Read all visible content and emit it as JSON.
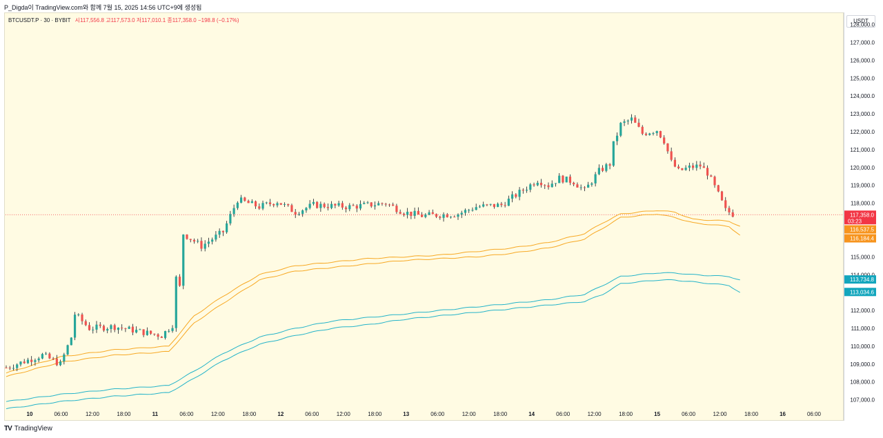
{
  "header": {
    "caption": "P_Digda이 TradingView.com와 함께 7월 15, 2025 14:56 UTC+9에 생성됨"
  },
  "legend": {
    "symbol": "BTCUSDT.P · 30 · BYBIT",
    "ohlc": "시117,556.8  고117,573.0  저117,010.1  종117,358.0  −198.8 (−0.17%)"
  },
  "price_axis": {
    "currency": "USDT"
  },
  "footer": {
    "logo": "TV",
    "brand": "TradingView"
  },
  "colors": {
    "background": "#fffbe3",
    "up": "#26a69a",
    "down": "#ef5350",
    "orange_band": "#f7a823",
    "cyan_band": "#22b3c9",
    "last_price": "#f23645",
    "orange_label": "#f7941d",
    "cyan_label": "#13a6bd"
  },
  "chart_data": {
    "type": "candlestick",
    "y_ticks": [
      "107,000.0",
      "108,000.0",
      "109,000.0",
      "110,000.0",
      "111,000.0",
      "112,000.0",
      "113,000.0",
      "114,000.0",
      "115,000.0",
      "116,000.0",
      "117,000.0",
      "118,000.0",
      "119,000.0",
      "120,000.0",
      "121,000.0",
      "122,000.0",
      "123,000.0",
      "124,000.0",
      "125,000.0",
      "126,000.0",
      "127,000.0",
      "128,000.0"
    ],
    "x_ticks": [
      "10",
      "06:00",
      "12:00",
      "18:00",
      "11",
      "06:00",
      "12:00",
      "18:00",
      "12",
      "06:00",
      "12:00",
      "18:00",
      "13",
      "06:00",
      "12:00",
      "18:00",
      "14",
      "06:00",
      "12:00",
      "18:00",
      "15",
      "06:00",
      "12:00",
      "18:00",
      "16",
      "06:00"
    ],
    "ylim": [
      106600,
      128600
    ],
    "price_path": [
      [
        0,
        108800
      ],
      [
        10,
        109500
      ],
      [
        15,
        109000
      ],
      [
        18,
        110500
      ],
      [
        19,
        111800
      ],
      [
        23,
        111000
      ],
      [
        30,
        111100
      ],
      [
        40,
        110700
      ],
      [
        43,
        110600
      ],
      [
        46,
        111200
      ],
      [
        47,
        113800
      ],
      [
        48,
        113300
      ],
      [
        49,
        116300
      ],
      [
        54,
        115600
      ],
      [
        60,
        116400
      ],
      [
        64,
        118200
      ],
      [
        70,
        117800
      ],
      [
        75,
        118100
      ],
      [
        80,
        117500
      ],
      [
        85,
        117900
      ],
      [
        95,
        117800
      ],
      [
        105,
        118000
      ],
      [
        110,
        117500
      ],
      [
        115,
        117300
      ],
      [
        125,
        117400
      ],
      [
        130,
        117800
      ],
      [
        137,
        117900
      ],
      [
        142,
        118600
      ],
      [
        147,
        119300
      ],
      [
        150,
        119000
      ],
      [
        153,
        119400
      ],
      [
        157,
        119200
      ],
      [
        160,
        118700
      ],
      [
        164,
        119800
      ],
      [
        167,
        120200
      ],
      [
        168,
        121300
      ],
      [
        170,
        122400
      ],
      [
        173,
        122700
      ],
      [
        176,
        121900
      ],
      [
        180,
        122100
      ],
      [
        182,
        121500
      ],
      [
        184,
        120300
      ],
      [
        186,
        119800
      ],
      [
        189,
        120000
      ],
      [
        192,
        120100
      ],
      [
        194,
        119700
      ],
      [
        197,
        118500
      ],
      [
        199,
        117600
      ],
      [
        201,
        117400
      ]
    ],
    "series": [
      {
        "name": "band-orange-upper",
        "color": "#f7a823",
        "values": [
          [
            0,
            108500
          ],
          [
            15,
            109400
          ],
          [
            30,
            109800
          ],
          [
            45,
            110000
          ],
          [
            52,
            111700
          ],
          [
            60,
            112800
          ],
          [
            70,
            114000
          ],
          [
            80,
            114500
          ],
          [
            90,
            114700
          ],
          [
            100,
            114900
          ],
          [
            110,
            115000
          ],
          [
            120,
            115100
          ],
          [
            130,
            115300
          ],
          [
            140,
            115500
          ],
          [
            150,
            115800
          ],
          [
            160,
            116300
          ],
          [
            165,
            116900
          ],
          [
            170,
            117400
          ],
          [
            180,
            117600
          ],
          [
            185,
            117500
          ],
          [
            190,
            117100
          ],
          [
            200,
            117000
          ],
          [
            203,
            116700
          ]
        ]
      },
      {
        "name": "band-orange-lower",
        "color": "#f7a823",
        "values": [
          [
            0,
            108300
          ],
          [
            15,
            109100
          ],
          [
            30,
            109500
          ],
          [
            45,
            109700
          ],
          [
            52,
            111300
          ],
          [
            60,
            112400
          ],
          [
            70,
            113700
          ],
          [
            80,
            114200
          ],
          [
            90,
            114400
          ],
          [
            100,
            114600
          ],
          [
            110,
            114800
          ],
          [
            120,
            114900
          ],
          [
            130,
            115000
          ],
          [
            140,
            115200
          ],
          [
            150,
            115500
          ],
          [
            160,
            116000
          ],
          [
            165,
            116600
          ],
          [
            170,
            117200
          ],
          [
            180,
            117400
          ],
          [
            185,
            117200
          ],
          [
            190,
            116900
          ],
          [
            200,
            116700
          ],
          [
            203,
            116200
          ]
        ]
      },
      {
        "name": "band-cyan-upper",
        "color": "#22b3c9",
        "values": [
          [
            0,
            106900
          ],
          [
            15,
            107300
          ],
          [
            30,
            107600
          ],
          [
            45,
            107800
          ],
          [
            52,
            108600
          ],
          [
            60,
            109600
          ],
          [
            70,
            110500
          ],
          [
            80,
            111000
          ],
          [
            90,
            111400
          ],
          [
            100,
            111600
          ],
          [
            110,
            111800
          ],
          [
            120,
            112000
          ],
          [
            130,
            112200
          ],
          [
            140,
            112400
          ],
          [
            150,
            112600
          ],
          [
            160,
            112900
          ],
          [
            165,
            113400
          ],
          [
            170,
            113900
          ],
          [
            180,
            114100
          ],
          [
            185,
            114100
          ],
          [
            190,
            114000
          ],
          [
            200,
            113900
          ],
          [
            203,
            113700
          ]
        ]
      },
      {
        "name": "band-cyan-lower",
        "color": "#22b3c9",
        "values": [
          [
            0,
            106500
          ],
          [
            15,
            106900
          ],
          [
            30,
            107200
          ],
          [
            45,
            107400
          ],
          [
            52,
            108200
          ],
          [
            60,
            109200
          ],
          [
            70,
            110100
          ],
          [
            80,
            110600
          ],
          [
            90,
            111000
          ],
          [
            100,
            111200
          ],
          [
            110,
            111500
          ],
          [
            120,
            111700
          ],
          [
            130,
            111900
          ],
          [
            140,
            112100
          ],
          [
            150,
            112300
          ],
          [
            160,
            112500
          ],
          [
            165,
            112900
          ],
          [
            170,
            113500
          ],
          [
            180,
            113700
          ],
          [
            185,
            113700
          ],
          [
            190,
            113600
          ],
          [
            200,
            113400
          ],
          [
            203,
            113000
          ]
        ]
      }
    ],
    "labels": [
      {
        "price": 117358.0,
        "text": "117,358.0",
        "sub": "03:23",
        "color": "#f23645"
      },
      {
        "price": 116537.5,
        "text": "116,537.5",
        "color": "#f7941d"
      },
      {
        "price": 116184.4,
        "text": "116,184.4",
        "color": "#f7941d"
      },
      {
        "price": 113734.8,
        "text": "113,734.8",
        "color": "#13a6bd"
      },
      {
        "price": 113034.6,
        "text": "113,034.6",
        "color": "#13a6bd"
      }
    ]
  }
}
